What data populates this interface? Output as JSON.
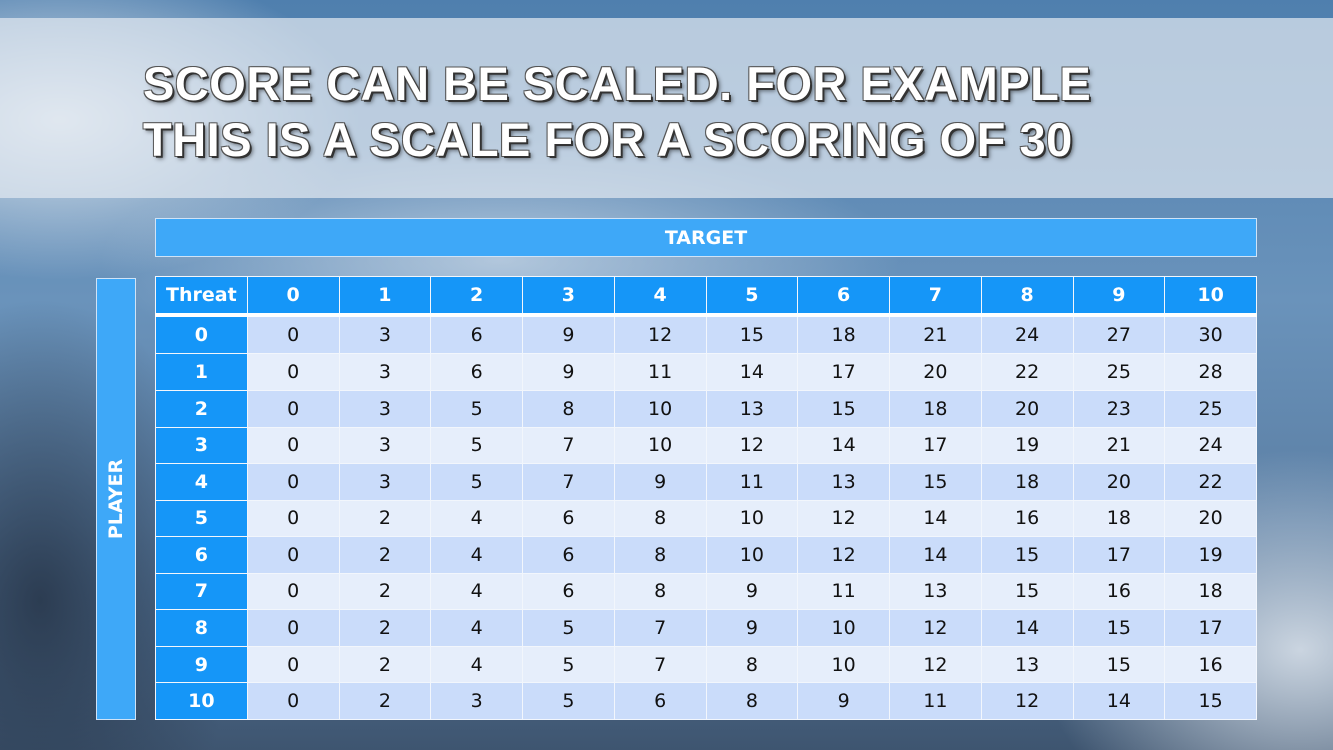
{
  "title": {
    "line1": "SCORE CAN BE SCALED. FOR EXAMPLE",
    "line2": "THIS IS A SCALE FOR A SCORING OF 30"
  },
  "target_label": "TARGET",
  "player_label": "PLAYER",
  "table": {
    "corner": "Threat",
    "columns": [
      "0",
      "1",
      "2",
      "3",
      "4",
      "5",
      "6",
      "7",
      "8",
      "9",
      "10"
    ],
    "rows": [
      {
        "label": "0",
        "values": [
          0,
          3,
          6,
          9,
          12,
          15,
          18,
          21,
          24,
          27,
          30
        ]
      },
      {
        "label": "1",
        "values": [
          0,
          3,
          6,
          9,
          11,
          14,
          17,
          20,
          22,
          25,
          28
        ]
      },
      {
        "label": "2",
        "values": [
          0,
          3,
          5,
          8,
          10,
          13,
          15,
          18,
          20,
          23,
          25
        ]
      },
      {
        "label": "3",
        "values": [
          0,
          3,
          5,
          7,
          10,
          12,
          14,
          17,
          19,
          21,
          24
        ]
      },
      {
        "label": "4",
        "values": [
          0,
          3,
          5,
          7,
          9,
          11,
          13,
          15,
          18,
          20,
          22
        ]
      },
      {
        "label": "5",
        "values": [
          0,
          2,
          4,
          6,
          8,
          10,
          12,
          14,
          16,
          18,
          20
        ]
      },
      {
        "label": "6",
        "values": [
          0,
          2,
          4,
          6,
          8,
          10,
          12,
          14,
          15,
          17,
          19
        ]
      },
      {
        "label": "7",
        "values": [
          0,
          2,
          4,
          6,
          8,
          9,
          11,
          13,
          15,
          16,
          18
        ]
      },
      {
        "label": "8",
        "values": [
          0,
          2,
          4,
          5,
          7,
          9,
          10,
          12,
          14,
          15,
          17
        ]
      },
      {
        "label": "9",
        "values": [
          0,
          2,
          4,
          5,
          7,
          8,
          10,
          12,
          13,
          15,
          16
        ]
      },
      {
        "label": "10",
        "values": [
          0,
          2,
          3,
          5,
          6,
          8,
          9,
          11,
          12,
          14,
          15
        ]
      }
    ]
  },
  "colors": {
    "header": "#1596f8",
    "bar": "#3ea8f8",
    "row_dark": "#cadcfa",
    "row_light": "#e6eefb"
  }
}
